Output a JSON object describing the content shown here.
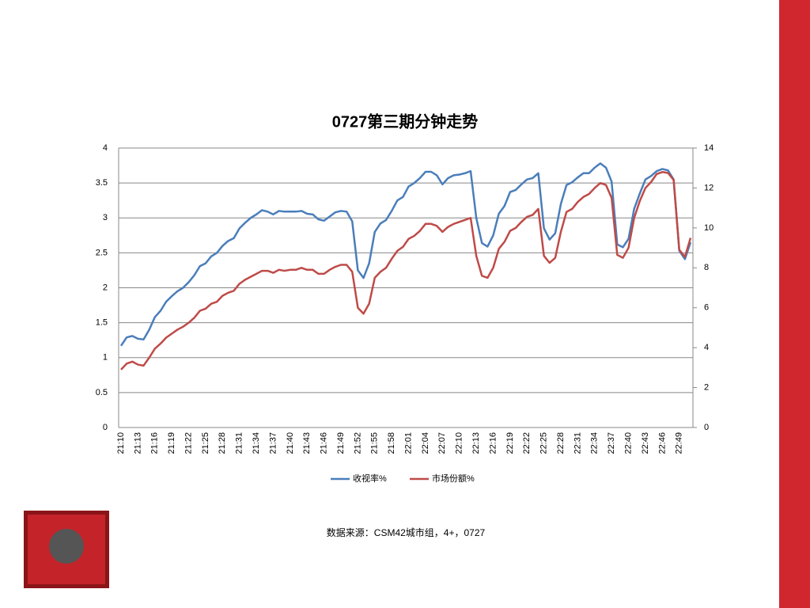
{
  "chart_data": {
    "type": "line",
    "title": "0727第三期分钟走势",
    "source": "数据来源：CSM42城市组，4+，0727",
    "categories": [
      "21:10",
      null,
      null,
      "21:13",
      null,
      null,
      "21:16",
      null,
      null,
      "21:19",
      null,
      null,
      "21:22",
      null,
      null,
      "21:25",
      null,
      null,
      "21:28",
      null,
      null,
      "21:31",
      null,
      null,
      "21:34",
      null,
      null,
      "21:37",
      null,
      null,
      "21:40",
      null,
      null,
      "21:43",
      null,
      null,
      "21:46",
      null,
      null,
      "21:49",
      null,
      null,
      "21:52",
      null,
      null,
      "21:55",
      null,
      null,
      "21:58",
      null,
      null,
      "22:01",
      null,
      null,
      "22:04",
      null,
      null,
      "22:07",
      null,
      null,
      "22:10",
      null,
      null,
      "22:13",
      null,
      null,
      "22:16",
      null,
      null,
      "22:19",
      null,
      null,
      "22:22",
      null,
      null,
      "22:25",
      null,
      null,
      "22:28",
      null,
      null,
      "22:31",
      null,
      null,
      "22:34",
      null,
      null,
      "22:37",
      null,
      null,
      "22:40",
      null,
      null,
      "22:43",
      null,
      null,
      "22:46",
      null,
      null,
      "22:49",
      null,
      null
    ],
    "series": [
      {
        "name": "收视率%",
        "color": "#4a7ebb",
        "axis": "y",
        "values": [
          1.17,
          1.29,
          1.31,
          1.27,
          1.26,
          1.4,
          1.58,
          1.67,
          1.8,
          1.88,
          1.95,
          2.0,
          2.08,
          2.18,
          2.31,
          2.35,
          2.45,
          2.5,
          2.6,
          2.67,
          2.71,
          2.85,
          2.93,
          3.0,
          3.05,
          3.11,
          3.09,
          3.05,
          3.1,
          3.09,
          3.09,
          3.09,
          3.1,
          3.06,
          3.05,
          2.98,
          2.96,
          3.02,
          3.08,
          3.1,
          3.09,
          2.95,
          2.25,
          2.14,
          2.35,
          2.8,
          2.92,
          2.97,
          3.1,
          3.25,
          3.3,
          3.45,
          3.5,
          3.57,
          3.66,
          3.66,
          3.61,
          3.48,
          3.57,
          3.61,
          3.62,
          3.64,
          3.67,
          3.0,
          2.64,
          2.59,
          2.75,
          3.06,
          3.17,
          3.37,
          3.4,
          3.48,
          3.55,
          3.57,
          3.64,
          2.85,
          2.69,
          2.78,
          3.2,
          3.47,
          3.51,
          3.58,
          3.64,
          3.64,
          3.72,
          3.78,
          3.72,
          3.52,
          2.62,
          2.58,
          2.7,
          3.13,
          3.35,
          3.55,
          3.6,
          3.67,
          3.7,
          3.68,
          3.55,
          2.53,
          2.41,
          2.65
        ]
      },
      {
        "name": "市场份额%",
        "color": "#be4b48",
        "axis": "y2",
        "values": [
          2.9,
          3.2,
          3.3,
          3.15,
          3.1,
          3.5,
          3.95,
          4.2,
          4.5,
          4.7,
          4.9,
          5.05,
          5.25,
          5.5,
          5.85,
          5.95,
          6.2,
          6.3,
          6.6,
          6.75,
          6.85,
          7.2,
          7.4,
          7.55,
          7.7,
          7.85,
          7.85,
          7.75,
          7.9,
          7.85,
          7.9,
          7.9,
          8.0,
          7.9,
          7.9,
          7.7,
          7.7,
          7.9,
          8.05,
          8.15,
          8.15,
          7.8,
          6.0,
          5.7,
          6.2,
          7.5,
          7.8,
          8.0,
          8.45,
          8.85,
          9.05,
          9.45,
          9.6,
          9.85,
          10.2,
          10.2,
          10.1,
          9.8,
          10.05,
          10.2,
          10.3,
          10.4,
          10.5,
          8.6,
          7.6,
          7.5,
          8.0,
          8.95,
          9.3,
          9.85,
          10.0,
          10.3,
          10.55,
          10.65,
          10.95,
          8.6,
          8.25,
          8.5,
          9.8,
          10.8,
          10.95,
          11.3,
          11.55,
          11.7,
          12.0,
          12.25,
          12.15,
          11.5,
          8.65,
          8.5,
          9.0,
          10.5,
          11.35,
          12.0,
          12.3,
          12.7,
          12.8,
          12.75,
          12.4,
          8.9,
          8.55,
          9.5
        ]
      }
    ],
    "ylim": [
      0,
      4
    ],
    "yticks": [
      0,
      0.5,
      1,
      1.5,
      2,
      2.5,
      3,
      3.5,
      4
    ],
    "y2lim": [
      0,
      14
    ],
    "y2ticks": [
      0,
      2,
      4,
      6,
      8,
      10,
      12,
      14
    ],
    "grid": true,
    "legend": "bottom"
  }
}
